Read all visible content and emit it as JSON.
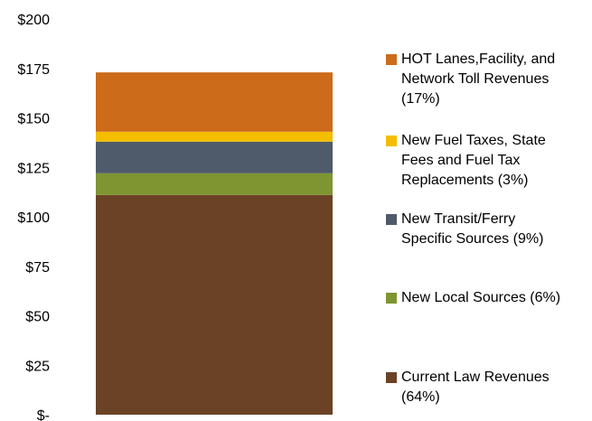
{
  "chart_data": {
    "type": "bar",
    "stacked": true,
    "categories": [
      ""
    ],
    "series": [
      {
        "name": "Current Law Revenues (64%)",
        "values": [
          111
        ],
        "color": "#6B4226"
      },
      {
        "name": "New Local Sources (6%)",
        "values": [
          11
        ],
        "color": "#7E9532"
      },
      {
        "name": "New Transit/Ferry Specific Sources (9%)",
        "values": [
          16
        ],
        "color": "#4F5B6B"
      },
      {
        "name": "New Fuel Taxes, State Fees and Fuel Tax Replacements (3%)",
        "values": [
          5
        ],
        "color": "#F5BD00"
      },
      {
        "name": "HOT Lanes,Facility, and Network Toll Revenues (17%)",
        "values": [
          30
        ],
        "color": "#CC6B1A"
      }
    ],
    "ylim": [
      0,
      200
    ],
    "yticks": [
      0,
      25,
      50,
      75,
      100,
      125,
      150,
      175,
      200
    ],
    "ytick_labels": [
      "$-",
      "$25",
      "$50",
      "$75",
      "$100",
      "$125",
      "$150",
      "$175",
      "$200"
    ],
    "grid": false,
    "legend_position": "right"
  },
  "legend": [
    {
      "label": "HOT Lanes,Facility, and\nNetwork Toll Revenues\n(17%)",
      "color": "#CC6B1A"
    },
    {
      "label": "New Fuel Taxes, State\nFees and Fuel Tax\nReplacements (3%)",
      "color": "#F5BD00"
    },
    {
      "label": "New Transit/Ferry\nSpecific Sources (9%)",
      "color": "#4F5B6B"
    },
    {
      "label": "New Local Sources (6%)",
      "color": "#7E9532"
    },
    {
      "label": "Current Law Revenues\n(64%)",
      "color": "#6B4226"
    }
  ]
}
